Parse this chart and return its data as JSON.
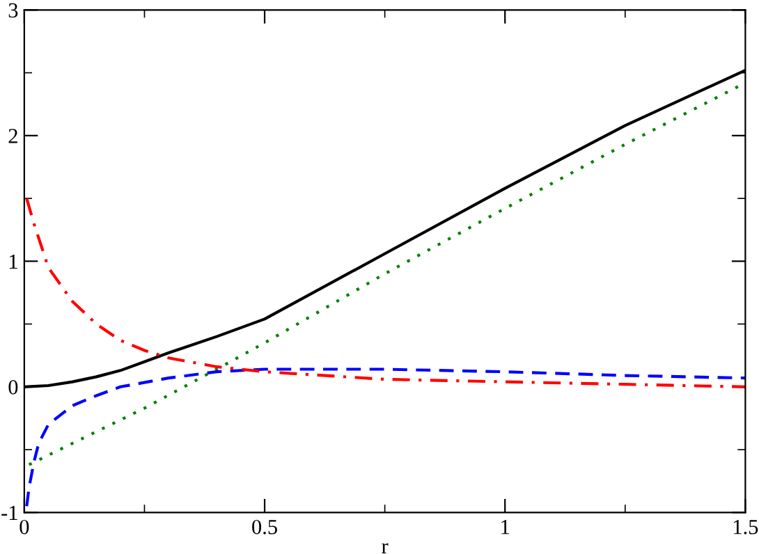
{
  "chart_data": {
    "type": "line",
    "xlabel": "r",
    "xlim": [
      0,
      1.5
    ],
    "ylim": [
      -1,
      3
    ],
    "xticks": [
      0,
      0.5,
      1,
      1.5
    ],
    "yticks": [
      -1,
      0,
      1,
      2,
      3
    ],
    "series": [
      {
        "color": "#000000",
        "line_style": "solid",
        "x": [
          0,
          0.05,
          0.1,
          0.15,
          0.2,
          0.25,
          0.3,
          0.4,
          0.5,
          0.75,
          1.0,
          1.25,
          1.5
        ],
        "values": [
          0,
          0.01,
          0.04,
          0.08,
          0.13,
          0.2,
          0.27,
          0.4,
          0.54,
          1.06,
          1.58,
          2.08,
          2.52
        ]
      },
      {
        "color": "#008000",
        "line_style": "dotted",
        "x": [
          0.01,
          0.1,
          0.25,
          0.4,
          0.5,
          0.75,
          1.0,
          1.25,
          1.5
        ],
        "values": [
          -0.62,
          -0.45,
          -0.17,
          0.14,
          0.35,
          0.9,
          1.42,
          1.93,
          2.42
        ]
      },
      {
        "color": "#0000ff",
        "line_style": "dashed",
        "x": [
          0.005,
          0.01,
          0.02,
          0.03,
          0.05,
          0.1,
          0.15,
          0.2,
          0.3,
          0.4,
          0.5,
          0.75,
          1.0,
          1.25,
          1.5
        ],
        "values": [
          -0.95,
          -0.8,
          -0.6,
          -0.45,
          -0.3,
          -0.15,
          -0.07,
          0.0,
          0.07,
          0.12,
          0.14,
          0.14,
          0.12,
          0.09,
          0.07
        ]
      },
      {
        "color": "#ff0000",
        "line_style": "dashdot",
        "x": [
          0.005,
          0.02,
          0.05,
          0.1,
          0.15,
          0.2,
          0.25,
          0.3,
          0.4,
          0.5,
          0.75,
          1.0,
          1.25,
          1.5
        ],
        "values": [
          1.5,
          1.3,
          0.95,
          0.68,
          0.5,
          0.37,
          0.29,
          0.23,
          0.16,
          0.12,
          0.06,
          0.04,
          0.02,
          0.0
        ]
      }
    ]
  }
}
